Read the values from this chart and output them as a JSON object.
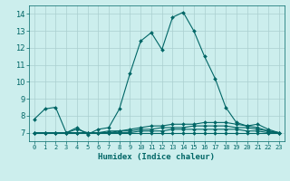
{
  "xlabel": "Humidex (Indice chaleur)",
  "background_color": "#cceeed",
  "grid_color": "#aacfcf",
  "line_color": "#006666",
  "xlim": [
    -0.5,
    23.5
  ],
  "ylim": [
    6.5,
    14.5
  ],
  "xticks": [
    0,
    1,
    2,
    3,
    4,
    5,
    6,
    7,
    8,
    9,
    10,
    11,
    12,
    13,
    14,
    15,
    16,
    17,
    18,
    19,
    20,
    21,
    22,
    23
  ],
  "yticks": [
    7,
    8,
    9,
    10,
    11,
    12,
    13,
    14
  ],
  "series": [
    [
      7.8,
      8.4,
      8.5,
      7.0,
      7.3,
      6.9,
      7.2,
      7.3,
      8.4,
      10.5,
      12.4,
      12.9,
      11.9,
      13.8,
      14.1,
      13.0,
      11.5,
      10.2,
      8.5,
      7.6,
      7.4,
      7.5,
      7.2,
      7.0
    ],
    [
      7.0,
      7.0,
      7.0,
      7.0,
      7.2,
      7.0,
      7.0,
      7.1,
      7.1,
      7.2,
      7.3,
      7.4,
      7.4,
      7.5,
      7.5,
      7.5,
      7.6,
      7.6,
      7.6,
      7.5,
      7.4,
      7.3,
      7.1,
      7.0
    ],
    [
      7.0,
      7.0,
      7.0,
      7.0,
      7.0,
      7.0,
      7.0,
      7.0,
      7.1,
      7.1,
      7.2,
      7.2,
      7.3,
      7.3,
      7.3,
      7.4,
      7.4,
      7.4,
      7.4,
      7.3,
      7.3,
      7.2,
      7.1,
      7.0
    ],
    [
      7.0,
      7.0,
      7.0,
      7.0,
      7.0,
      7.0,
      7.0,
      7.0,
      7.0,
      7.0,
      7.1,
      7.1,
      7.1,
      7.2,
      7.2,
      7.2,
      7.2,
      7.2,
      7.2,
      7.2,
      7.1,
      7.1,
      7.0,
      7.0
    ],
    [
      7.0,
      7.0,
      7.0,
      7.0,
      7.0,
      7.0,
      7.0,
      7.0,
      7.0,
      7.0,
      7.0,
      7.0,
      7.0,
      7.0,
      7.0,
      7.0,
      7.0,
      7.0,
      7.0,
      7.0,
      7.0,
      7.0,
      7.0,
      7.0
    ]
  ],
  "markersize": 2.0,
  "linewidth": 0.8
}
